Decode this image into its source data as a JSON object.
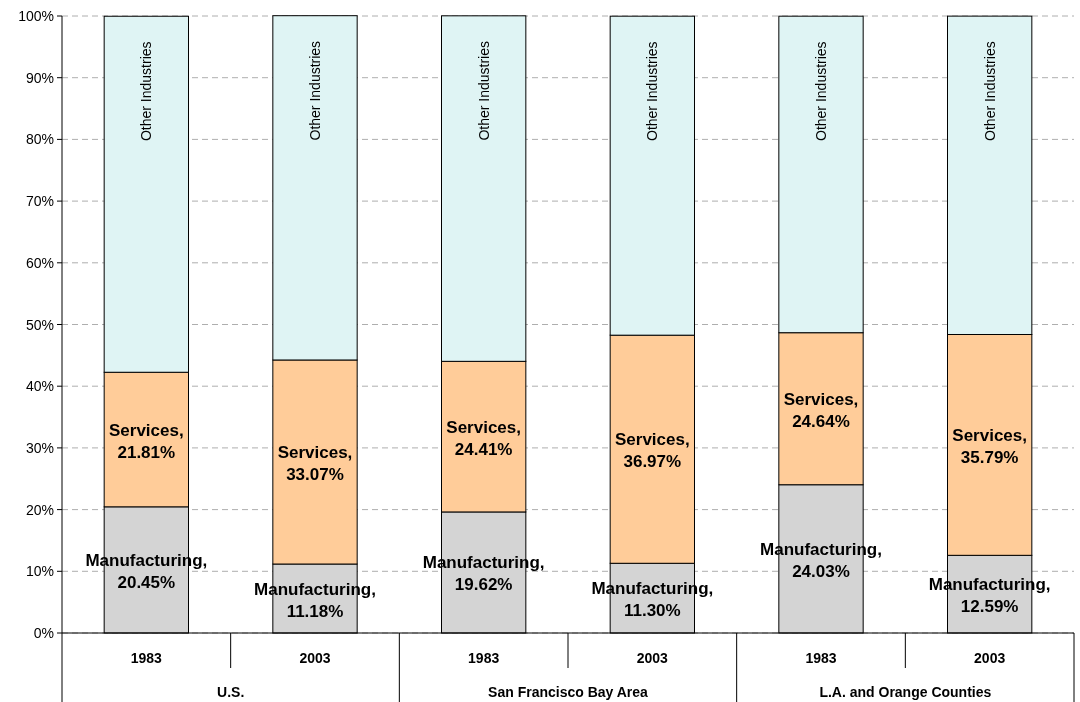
{
  "chart_data": {
    "type": "bar",
    "stacked": true,
    "categories": [
      "1983",
      "2003",
      "1983",
      "2003",
      "1983",
      "2003"
    ],
    "series": [
      {
        "color": "#d4d4d4",
        "values": [
          20.45,
          11.18,
          19.62,
          11.3,
          24.03,
          12.59
        ],
        "value_labels": [
          "Manufacturing,\n20.45%",
          "Manufacturing,\n11.18%",
          "Manufacturing,\n19.62%",
          "Manufacturing,\n11.30%",
          "Manufacturing,\n24.03%",
          "Manufacturing,\n12.59%"
        ]
      },
      {
        "color": "#ffcc99",
        "values": [
          21.81,
          33.07,
          24.41,
          36.97,
          24.64,
          35.79
        ],
        "value_labels": [
          "Services,\n21.81%",
          "Services,\n33.07%",
          "Services,\n24.41%",
          "Services,\n36.97%",
          "Services,\n24.64%",
          "Services,\n35.79%"
        ]
      },
      {
        "name": "Other Industries",
        "color": "#dff4f4",
        "values": [
          57.7,
          55.8,
          56,
          51.7,
          51.3,
          51.6
        ]
      }
    ],
    "ylim": [
      0,
      100
    ],
    "yticks": [
      {
        "value": 0,
        "label": "0%"
      },
      {
        "value": 10,
        "label": "10%"
      },
      {
        "value": 20,
        "label": "20%"
      },
      {
        "value": 30,
        "label": "30%"
      },
      {
        "value": 40,
        "label": "40%"
      },
      {
        "value": 50,
        "label": "50%"
      },
      {
        "value": 60,
        "label": "60%"
      },
      {
        "value": 70,
        "label": "70%"
      },
      {
        "value": 80,
        "label": "80%"
      },
      {
        "value": 90,
        "label": "90%"
      },
      {
        "value": 100,
        "label": "100%"
      }
    ],
    "grid": "y",
    "annotations": [
      "U.S.",
      "San Francisco Bay Area",
      "L.A. and Orange Counties"
    ]
  }
}
